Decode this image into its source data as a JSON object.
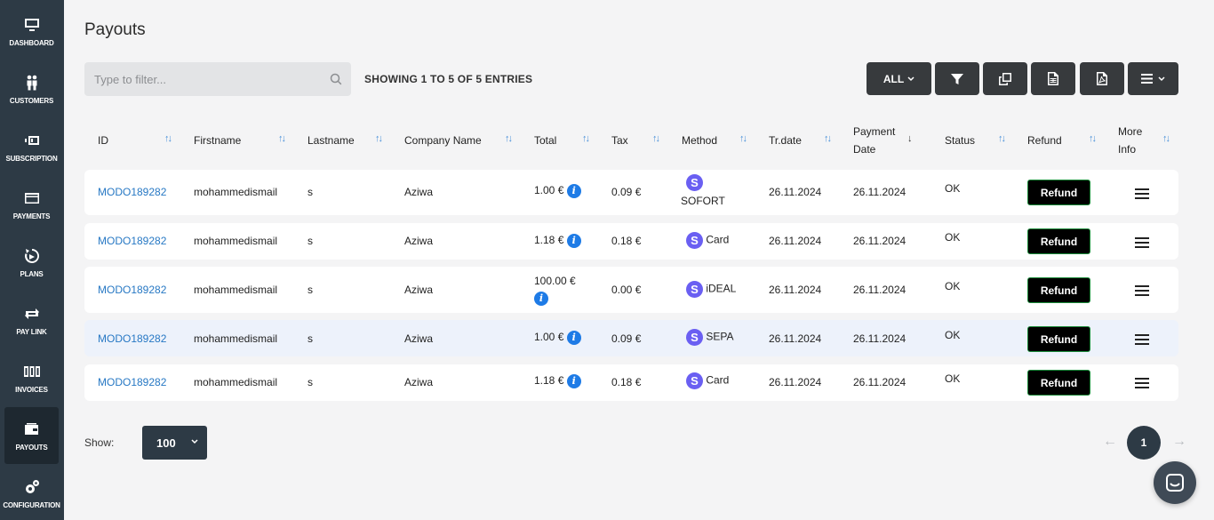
{
  "sidebar": {
    "items": [
      {
        "label": "DASHBOARD",
        "icon": "monitor-icon"
      },
      {
        "label": "CUSTOMERS",
        "icon": "users-icon"
      },
      {
        "label": "SUBSCRIPTION",
        "icon": "subscription-icon"
      },
      {
        "label": "PAYMENTS",
        "icon": "credit-card-icon"
      },
      {
        "label": "PLANS",
        "icon": "plans-icon"
      },
      {
        "label": "PAY LINK",
        "icon": "exchange-icon"
      },
      {
        "label": "INVOICES",
        "icon": "invoices-icon"
      },
      {
        "label": "PAYOUTS",
        "icon": "wallet-icon",
        "active": true
      },
      {
        "label": "CONFIGURATION",
        "icon": "gears-icon"
      }
    ]
  },
  "page": {
    "title": "Payouts",
    "filter_placeholder": "Type to filter...",
    "showing": "SHOWING 1 TO 5 OF 5 ENTRIES"
  },
  "toolbar": {
    "all_label": "ALL",
    "buttons": [
      "filter-icon",
      "copy-icon",
      "csv-icon",
      "pdf-icon",
      "columns-menu-icon"
    ]
  },
  "table": {
    "columns": [
      "ID",
      "Firstname",
      "Lastname",
      "Company Name",
      "Total",
      "Tax",
      "Method",
      "Tr.date",
      "Payment Date",
      "Status",
      "Refund",
      "More Info"
    ],
    "rows": [
      {
        "id": "MODO189282",
        "firstname": "mohammedismail",
        "lastname": "s",
        "company": "Aziwa",
        "total": "1.00 €",
        "tax": "0.09 €",
        "method": "SOFORT",
        "trdate": "26.11.2024",
        "paydate": "26.11.2024",
        "status": "OK",
        "refund": "Refund"
      },
      {
        "id": "MODO189282",
        "firstname": "mohammedismail",
        "lastname": "s",
        "company": "Aziwa",
        "total": "1.18 €",
        "tax": "0.18 €",
        "method": "Card",
        "trdate": "26.11.2024",
        "paydate": "26.11.2024",
        "status": "OK",
        "refund": "Refund"
      },
      {
        "id": "MODO189282",
        "firstname": "mohammedismail",
        "lastname": "s",
        "company": "Aziwa",
        "total": "100.00 €",
        "tax": "0.00 €",
        "method": "iDEAL",
        "trdate": "26.11.2024",
        "paydate": "26.11.2024",
        "status": "OK",
        "refund": "Refund"
      },
      {
        "id": "MODO189282",
        "firstname": "mohammedismail",
        "lastname": "s",
        "company": "Aziwa",
        "total": "1.00 €",
        "tax": "0.09 €",
        "method": "SEPA",
        "trdate": "26.11.2024",
        "paydate": "26.11.2024",
        "status": "OK",
        "refund": "Refund"
      },
      {
        "id": "MODO189282",
        "firstname": "mohammedismail",
        "lastname": "s",
        "company": "Aziwa",
        "total": "1.18 €",
        "tax": "0.18 €",
        "method": "Card",
        "trdate": "26.11.2024",
        "paydate": "26.11.2024",
        "status": "OK",
        "refund": "Refund"
      }
    ]
  },
  "footer": {
    "show_label": "Show:",
    "page_size": "100",
    "prev": "←",
    "page": "1",
    "next": "→"
  },
  "colors": {
    "sidebar": "#2d3a45",
    "link": "#2778c4",
    "stripe": "#6a5ff2",
    "info": "#1e7be6"
  }
}
